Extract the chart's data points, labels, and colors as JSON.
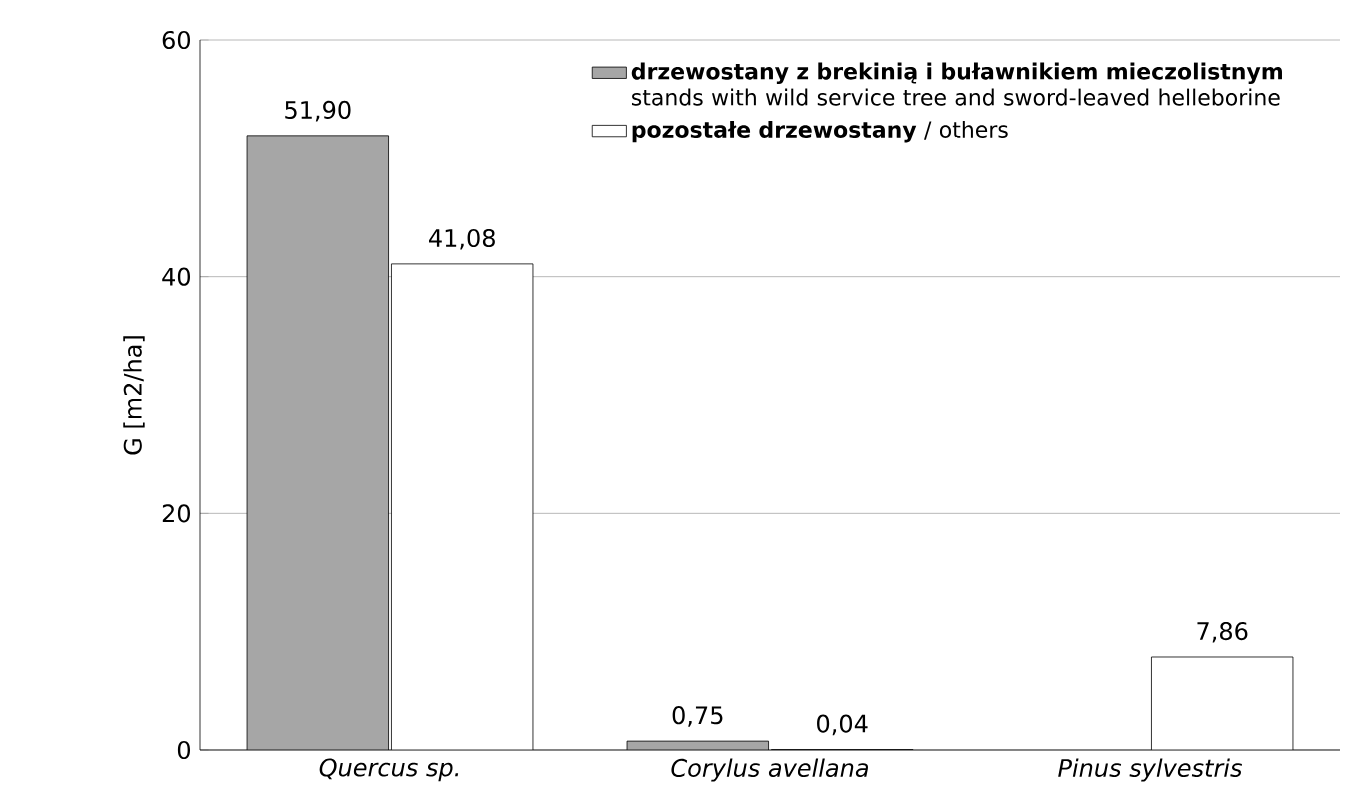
{
  "chart_data": {
    "type": "bar",
    "ylabel": "G [m2/ha]",
    "categories": [
      "Quercus sp.",
      "Corylus avellana",
      "Pinus sylvestris"
    ],
    "series": [
      {
        "name": "**drzewostany z brekinią i buławnikiem mieczolistnym** stands with wild service tree and sword-leaved helleborine",
        "color": "#a6a6a6",
        "values": [
          51.9,
          0.75,
          null
        ],
        "value_labels": [
          "51,90",
          "0,75",
          null
        ]
      },
      {
        "name": "**pozostałe drzewostany** / others",
        "color": "#ffffff",
        "values": [
          41.08,
          0.04,
          7.86
        ],
        "value_labels": [
          "41,08",
          "0,04",
          "7,86"
        ]
      }
    ],
    "ylim": [
      0,
      60
    ],
    "yticks": [
      0,
      20,
      40,
      60
    ],
    "grid": "y",
    "legend": "top right"
  }
}
